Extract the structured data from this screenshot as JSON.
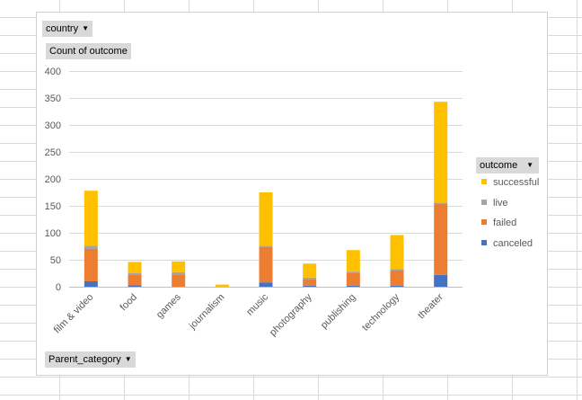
{
  "filters": {
    "country_label": "country",
    "value_label": "Count of outcome",
    "axis_field_label": "Parent_category",
    "legend_field_label": "outcome"
  },
  "colors": {
    "canceled": "#4472c4",
    "failed": "#ed7d31",
    "live": "#a5a5a5",
    "successful": "#ffc000"
  },
  "legend": [
    {
      "name": "successful",
      "color": "#ffc000"
    },
    {
      "name": "live",
      "color": "#a5a5a5"
    },
    {
      "name": "failed",
      "color": "#ed7d31"
    },
    {
      "name": "canceled",
      "color": "#4472c4"
    }
  ],
  "chart_data": {
    "type": "bar",
    "stacked": true,
    "title": "",
    "xlabel": "",
    "ylabel": "",
    "ylim": [
      0,
      400
    ],
    "yticks": [
      0,
      50,
      100,
      150,
      200,
      250,
      300,
      350,
      400
    ],
    "grid": true,
    "legend_position": "right",
    "categories": [
      "film & video",
      "food",
      "games",
      "journalism",
      "music",
      "photography",
      "publishing",
      "technology",
      "theater"
    ],
    "series": [
      {
        "name": "canceled",
        "values": [
          10,
          3,
          0,
          0,
          8,
          2,
          2,
          2,
          22
        ]
      },
      {
        "name": "failed",
        "values": [
          60,
          20,
          23,
          0,
          66,
          12,
          24,
          28,
          132
        ]
      },
      {
        "name": "live",
        "values": [
          6,
          2,
          4,
          0,
          2,
          3,
          2,
          3,
          2
        ]
      },
      {
        "name": "successful",
        "values": [
          102,
          21,
          20,
          4,
          99,
          26,
          40,
          63,
          187
        ]
      }
    ]
  }
}
